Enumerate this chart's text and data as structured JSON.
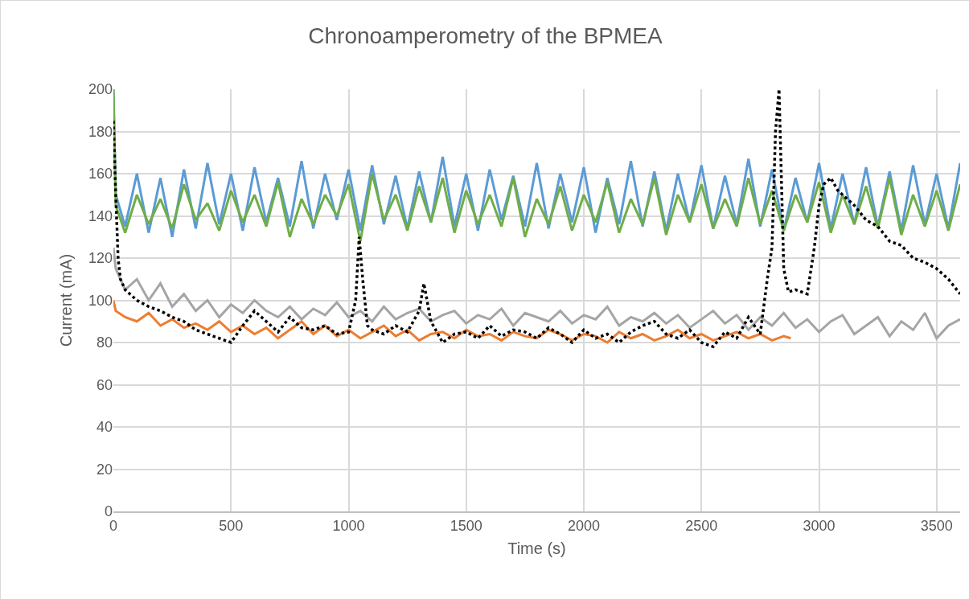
{
  "chart_data": {
    "type": "line",
    "title": "Chronoamperometry of the BPMEA",
    "xlabel": "Time (s)",
    "ylabel": "Current (mA)",
    "xlim": [
      0,
      3600
    ],
    "xticks": [
      0,
      500,
      1000,
      1500,
      2000,
      2500,
      3000,
      3500
    ],
    "ylim": [
      0,
      200
    ],
    "yticks": [
      0,
      20,
      40,
      60,
      80,
      100,
      120,
      140,
      160,
      180,
      200
    ],
    "grid": true,
    "marker": "none",
    "series": [
      {
        "color": "#5b9bd5",
        "line_style": "solid",
        "x": [
          0,
          10,
          50,
          100,
          150,
          200,
          250,
          300,
          350,
          400,
          450,
          500,
          550,
          600,
          650,
          700,
          750,
          800,
          850,
          900,
          950,
          1000,
          1050,
          1100,
          1150,
          1200,
          1250,
          1300,
          1350,
          1400,
          1450,
          1500,
          1550,
          1600,
          1650,
          1700,
          1750,
          1800,
          1850,
          1900,
          1950,
          2000,
          2050,
          2100,
          2150,
          2200,
          2250,
          2300,
          2350,
          2400,
          2450,
          2500,
          2550,
          2600,
          2650,
          2700,
          2750,
          2800,
          2850,
          2900,
          2950,
          3000,
          3050,
          3100,
          3150,
          3200,
          3250,
          3300,
          3350,
          3400,
          3450,
          3500,
          3550,
          3600
        ],
        "values": [
          200,
          150,
          135,
          160,
          132,
          158,
          130,
          162,
          134,
          165,
          136,
          160,
          133,
          163,
          137,
          158,
          135,
          166,
          134,
          160,
          138,
          162,
          133,
          164,
          136,
          159,
          134,
          161,
          137,
          168,
          135,
          160,
          133,
          162,
          138,
          159,
          135,
          165,
          134,
          160,
          137,
          163,
          132,
          158,
          136,
          166,
          135,
          161,
          133,
          160,
          137,
          164,
          134,
          159,
          136,
          167,
          135,
          162,
          133,
          158,
          137,
          165,
          134,
          160,
          136,
          163,
          135,
          161,
          133,
          164,
          136,
          160,
          134,
          165
        ]
      },
      {
        "color": "#70ad47",
        "line_style": "solid",
        "x": [
          0,
          10,
          50,
          100,
          150,
          200,
          250,
          300,
          350,
          400,
          450,
          500,
          550,
          600,
          650,
          700,
          750,
          800,
          850,
          900,
          950,
          1000,
          1050,
          1100,
          1150,
          1200,
          1250,
          1300,
          1350,
          1400,
          1450,
          1500,
          1550,
          1600,
          1650,
          1700,
          1750,
          1800,
          1850,
          1900,
          1950,
          2000,
          2050,
          2100,
          2150,
          2200,
          2250,
          2300,
          2350,
          2400,
          2450,
          2500,
          2550,
          2600,
          2650,
          2700,
          2750,
          2800,
          2850,
          2900,
          2950,
          3000,
          3050,
          3100,
          3150,
          3200,
          3250,
          3300,
          3350,
          3400,
          3450,
          3500,
          3550,
          3600
        ],
        "values": [
          200,
          145,
          132,
          150,
          136,
          148,
          134,
          155,
          138,
          146,
          133,
          152,
          137,
          150,
          135,
          156,
          130,
          148,
          136,
          150,
          140,
          155,
          128,
          160,
          138,
          150,
          133,
          154,
          137,
          158,
          132,
          152,
          136,
          150,
          135,
          158,
          130,
          148,
          136,
          154,
          133,
          150,
          137,
          156,
          132,
          148,
          136,
          158,
          131,
          150,
          137,
          155,
          134,
          148,
          135,
          158,
          136,
          152,
          133,
          150,
          137,
          156,
          132,
          150,
          136,
          154,
          134,
          158,
          131,
          150,
          135,
          152,
          133,
          155
        ]
      },
      {
        "color": "#ed7d31",
        "line_style": "solid",
        "x": [
          0,
          10,
          50,
          100,
          150,
          200,
          250,
          300,
          350,
          400,
          450,
          500,
          550,
          600,
          650,
          700,
          750,
          800,
          850,
          900,
          950,
          1000,
          1050,
          1100,
          1150,
          1200,
          1250,
          1300,
          1350,
          1400,
          1450,
          1500,
          1550,
          1600,
          1650,
          1700,
          1750,
          1800,
          1850,
          1900,
          1950,
          2000,
          2050,
          2100,
          2150,
          2200,
          2250,
          2300,
          2350,
          2400,
          2450,
          2500,
          2550,
          2600,
          2650,
          2700,
          2750,
          2800,
          2850,
          2880
        ],
        "values": [
          100,
          95,
          92,
          90,
          94,
          88,
          91,
          87,
          89,
          86,
          90,
          85,
          88,
          84,
          87,
          82,
          86,
          90,
          84,
          88,
          83,
          86,
          82,
          85,
          88,
          83,
          86,
          81,
          84,
          85,
          82,
          86,
          83,
          84,
          81,
          85,
          83,
          82,
          86,
          84,
          81,
          84,
          83,
          80,
          85,
          82,
          84,
          81,
          83,
          86,
          82,
          84,
          81,
          83,
          85,
          82,
          84,
          81,
          83,
          82
        ]
      },
      {
        "color": "#a5a5a5",
        "line_style": "solid",
        "x": [
          0,
          10,
          50,
          100,
          150,
          200,
          250,
          300,
          350,
          400,
          450,
          500,
          550,
          600,
          650,
          700,
          750,
          800,
          850,
          900,
          950,
          1000,
          1050,
          1100,
          1150,
          1200,
          1250,
          1300,
          1350,
          1400,
          1450,
          1500,
          1550,
          1600,
          1650,
          1700,
          1750,
          1800,
          1850,
          1900,
          1950,
          2000,
          2050,
          2100,
          2150,
          2200,
          2250,
          2300,
          2350,
          2400,
          2450,
          2500,
          2550,
          2600,
          2650,
          2700,
          2750,
          2800,
          2850,
          2900,
          2950,
          3000,
          3050,
          3100,
          3150,
          3200,
          3250,
          3300,
          3350,
          3400,
          3450,
          3500,
          3550,
          3600
        ],
        "values": [
          125,
          115,
          105,
          110,
          100,
          108,
          97,
          103,
          95,
          100,
          92,
          98,
          94,
          100,
          95,
          92,
          97,
          91,
          96,
          93,
          99,
          92,
          95,
          90,
          97,
          91,
          94,
          96,
          90,
          93,
          95,
          89,
          93,
          91,
          96,
          88,
          94,
          92,
          90,
          95,
          89,
          93,
          91,
          97,
          88,
          92,
          90,
          94,
          89,
          93,
          87,
          91,
          95,
          89,
          93,
          86,
          92,
          88,
          94,
          87,
          91,
          85,
          90,
          93,
          84,
          88,
          92,
          83,
          90,
          86,
          94,
          82,
          88,
          91
        ]
      },
      {
        "color": "#000000",
        "line_style": "dotted",
        "x": [
          0,
          10,
          20,
          30,
          50,
          100,
          150,
          200,
          250,
          300,
          350,
          400,
          450,
          500,
          550,
          600,
          650,
          700,
          750,
          800,
          850,
          900,
          950,
          1000,
          1030,
          1045,
          1060,
          1080,
          1100,
          1150,
          1200,
          1250,
          1300,
          1320,
          1350,
          1400,
          1450,
          1500,
          1550,
          1600,
          1650,
          1700,
          1750,
          1800,
          1850,
          1900,
          1950,
          2000,
          2050,
          2100,
          2150,
          2200,
          2250,
          2300,
          2350,
          2400,
          2450,
          2500,
          2550,
          2600,
          2650,
          2700,
          2750,
          2780,
          2800,
          2815,
          2830,
          2850,
          2870,
          2900,
          2950,
          2980,
          3000,
          3020,
          3050,
          3080,
          3100,
          3150,
          3200,
          3250,
          3300,
          3350,
          3400,
          3450,
          3500,
          3550,
          3600
        ],
        "values": [
          185,
          150,
          120,
          110,
          105,
          100,
          97,
          95,
          92,
          90,
          86,
          84,
          82,
          80,
          88,
          95,
          90,
          85,
          92,
          87,
          86,
          88,
          84,
          85,
          100,
          130,
          110,
          88,
          86,
          84,
          88,
          85,
          95,
          108,
          90,
          80,
          84,
          85,
          82,
          88,
          83,
          86,
          85,
          82,
          87,
          84,
          80,
          86,
          82,
          84,
          80,
          85,
          88,
          90,
          84,
          82,
          86,
          80,
          78,
          85,
          82,
          92,
          84,
          110,
          125,
          180,
          200,
          115,
          104,
          105,
          103,
          125,
          145,
          155,
          158,
          152,
          150,
          145,
          138,
          135,
          128,
          126,
          120,
          118,
          115,
          110,
          103
        ]
      }
    ]
  }
}
